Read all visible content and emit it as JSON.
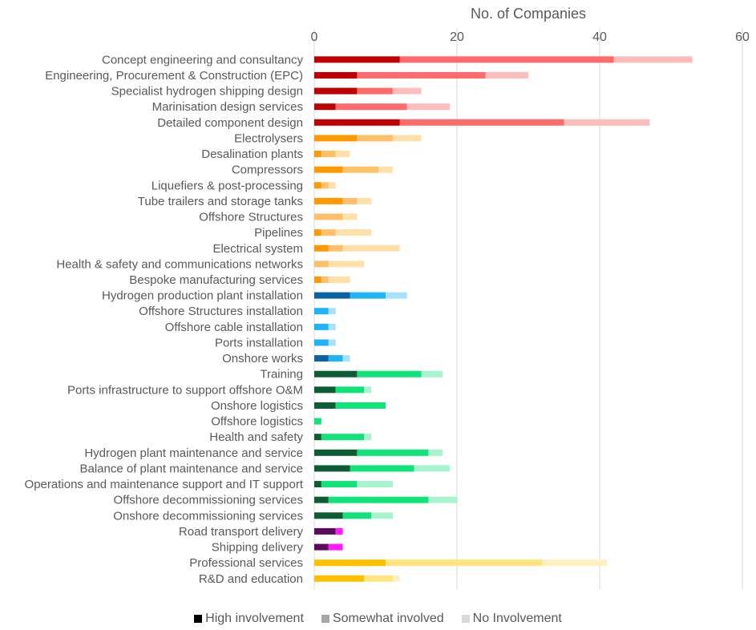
{
  "chart_data": {
    "type": "bar",
    "orientation": "horizontal",
    "stacked": true,
    "xlabel": "No. of Companies",
    "xlim": [
      0,
      60
    ],
    "xticks": [
      0,
      20,
      40,
      60
    ],
    "axis_position": "top",
    "grid": true,
    "legend_position": "bottom",
    "series": [
      {
        "name": "High involvement"
      },
      {
        "name": "Somewhat involved"
      },
      {
        "name": "No Involvement"
      }
    ],
    "legend_colors": [
      "#000000",
      "#a6a6a6",
      "#d9d9d9"
    ],
    "groups": [
      {
        "colors": [
          "#c00000",
          "#ff6b6b",
          "#ffbcbc"
        ]
      },
      {
        "colors": [
          "#ff9900",
          "#ffc06b",
          "#ffe0a8"
        ]
      },
      {
        "colors": [
          "#0b63a3",
          "#1fb4f5",
          "#a6e2fb"
        ]
      },
      {
        "colors": [
          "#0d5c33",
          "#11e27a",
          "#a8f5cd"
        ]
      },
      {
        "colors": [
          "#5b0a5b",
          "#ff19ff",
          "#ffb0ff"
        ]
      },
      {
        "colors": [
          "#ffc000",
          "#ffe480",
          "#fff0c2"
        ]
      }
    ],
    "categories": [
      {
        "label": "Concept engineering and consultancy",
        "group": 0,
        "values": [
          12,
          30,
          11
        ]
      },
      {
        "label": "Engineering, Procurement & Construction (EPC)",
        "group": 0,
        "values": [
          6,
          18,
          6
        ]
      },
      {
        "label": "Specialist hydrogen shipping design",
        "group": 0,
        "values": [
          6,
          5,
          4
        ]
      },
      {
        "label": "Marinisation design services",
        "group": 0,
        "values": [
          3,
          10,
          6
        ]
      },
      {
        "label": "Detailed component design",
        "group": 0,
        "values": [
          12,
          23,
          12
        ]
      },
      {
        "label": "Electrolysers",
        "group": 1,
        "values": [
          6,
          5,
          4
        ]
      },
      {
        "label": "Desalination plants",
        "group": 1,
        "values": [
          1,
          2,
          2
        ]
      },
      {
        "label": "Compressors",
        "group": 1,
        "values": [
          4,
          5,
          2
        ]
      },
      {
        "label": "Liquefiers & post-processing",
        "group": 1,
        "values": [
          1,
          1,
          1
        ]
      },
      {
        "label": "Tube trailers and storage tanks",
        "group": 1,
        "values": [
          4,
          2,
          2
        ]
      },
      {
        "label": "Offshore Structures",
        "group": 1,
        "values": [
          0,
          4,
          2
        ]
      },
      {
        "label": "Pipelines",
        "group": 1,
        "values": [
          1,
          2,
          5
        ]
      },
      {
        "label": "Electrical system",
        "group": 1,
        "values": [
          2,
          2,
          8
        ]
      },
      {
        "label": "Health & safety and communications networks",
        "group": 1,
        "values": [
          0,
          2,
          5
        ]
      },
      {
        "label": "Bespoke manufacturing services",
        "group": 1,
        "values": [
          1,
          1,
          3
        ]
      },
      {
        "label": "Hydrogen production plant installation",
        "group": 2,
        "values": [
          5,
          5,
          3
        ]
      },
      {
        "label": "Offshore Structures installation",
        "group": 2,
        "values": [
          0,
          2,
          1
        ]
      },
      {
        "label": "Offshore cable installation",
        "group": 2,
        "values": [
          0,
          2,
          1
        ]
      },
      {
        "label": "Ports installation",
        "group": 2,
        "values": [
          0,
          2,
          1
        ]
      },
      {
        "label": "Onshore works",
        "group": 2,
        "values": [
          2,
          2,
          1
        ]
      },
      {
        "label": "Training",
        "group": 3,
        "values": [
          6,
          9,
          3
        ]
      },
      {
        "label": "Ports infrastructure to support offshore O&M",
        "group": 3,
        "values": [
          3,
          4,
          1
        ]
      },
      {
        "label": "Onshore logistics",
        "group": 3,
        "values": [
          3,
          7,
          0
        ]
      },
      {
        "label": "Offshore logistics",
        "group": 3,
        "values": [
          0,
          1,
          0
        ]
      },
      {
        "label": "Health and safety",
        "group": 3,
        "values": [
          1,
          6,
          1
        ]
      },
      {
        "label": "Hydrogen plant maintenance and service",
        "group": 3,
        "values": [
          6,
          10,
          2
        ]
      },
      {
        "label": "Balance of plant maintenance and service",
        "group": 3,
        "values": [
          5,
          9,
          5
        ]
      },
      {
        "label": "Operations and maintenance support and IT support",
        "group": 3,
        "values": [
          1,
          5,
          5
        ]
      },
      {
        "label": "Offshore decommissioning services",
        "group": 3,
        "values": [
          2,
          14,
          4
        ]
      },
      {
        "label": "Onshore decommissioning services",
        "group": 3,
        "values": [
          4,
          4,
          3
        ]
      },
      {
        "label": "Road transport delivery",
        "group": 4,
        "values": [
          3,
          1,
          0
        ]
      },
      {
        "label": "Shipping delivery",
        "group": 4,
        "values": [
          2,
          2,
          0
        ]
      },
      {
        "label": "Professional services",
        "group": 5,
        "values": [
          10,
          22,
          9
        ]
      },
      {
        "label": "R&D and education",
        "group": 5,
        "values": [
          7,
          4,
          1
        ]
      }
    ]
  }
}
